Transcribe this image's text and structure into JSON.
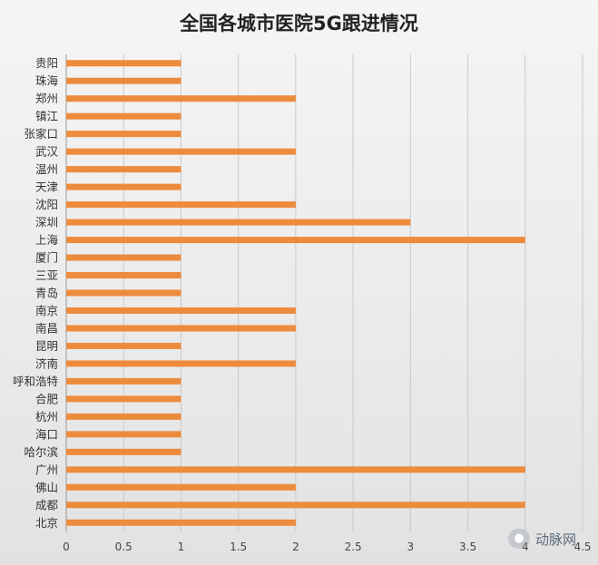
{
  "chart_data": {
    "type": "bar",
    "orientation": "horizontal",
    "title": "全国各城市医院5G跟进情况",
    "xlabel": "",
    "ylabel": "",
    "xlim": [
      0,
      4.5
    ],
    "xticks": [
      "0",
      "0.5",
      "1",
      "1.5",
      "2",
      "2.5",
      "3",
      "3.5",
      "4",
      "4.5"
    ],
    "grid": "vertical",
    "bar_color": "#ed8b3d",
    "categories": [
      "贵阳",
      "珠海",
      "郑州",
      "镇江",
      "张家口",
      "武汉",
      "温州",
      "天津",
      "沈阳",
      "深圳",
      "上海",
      "厦门",
      "三亚",
      "青岛",
      "南京",
      "南昌",
      "昆明",
      "济南",
      "呼和浩特",
      "合肥",
      "杭州",
      "海口",
      "哈尔滨",
      "广州",
      "佛山",
      "成都",
      "北京"
    ],
    "values": [
      1,
      1,
      2,
      1,
      1,
      2,
      1,
      1,
      2,
      3,
      4,
      1,
      1,
      1,
      2,
      2,
      1,
      2,
      1,
      1,
      1,
      1,
      1,
      4,
      2,
      4,
      2
    ]
  },
  "watermark": {
    "text": "动脉网",
    "icon": "wechat-bubble-icon"
  }
}
